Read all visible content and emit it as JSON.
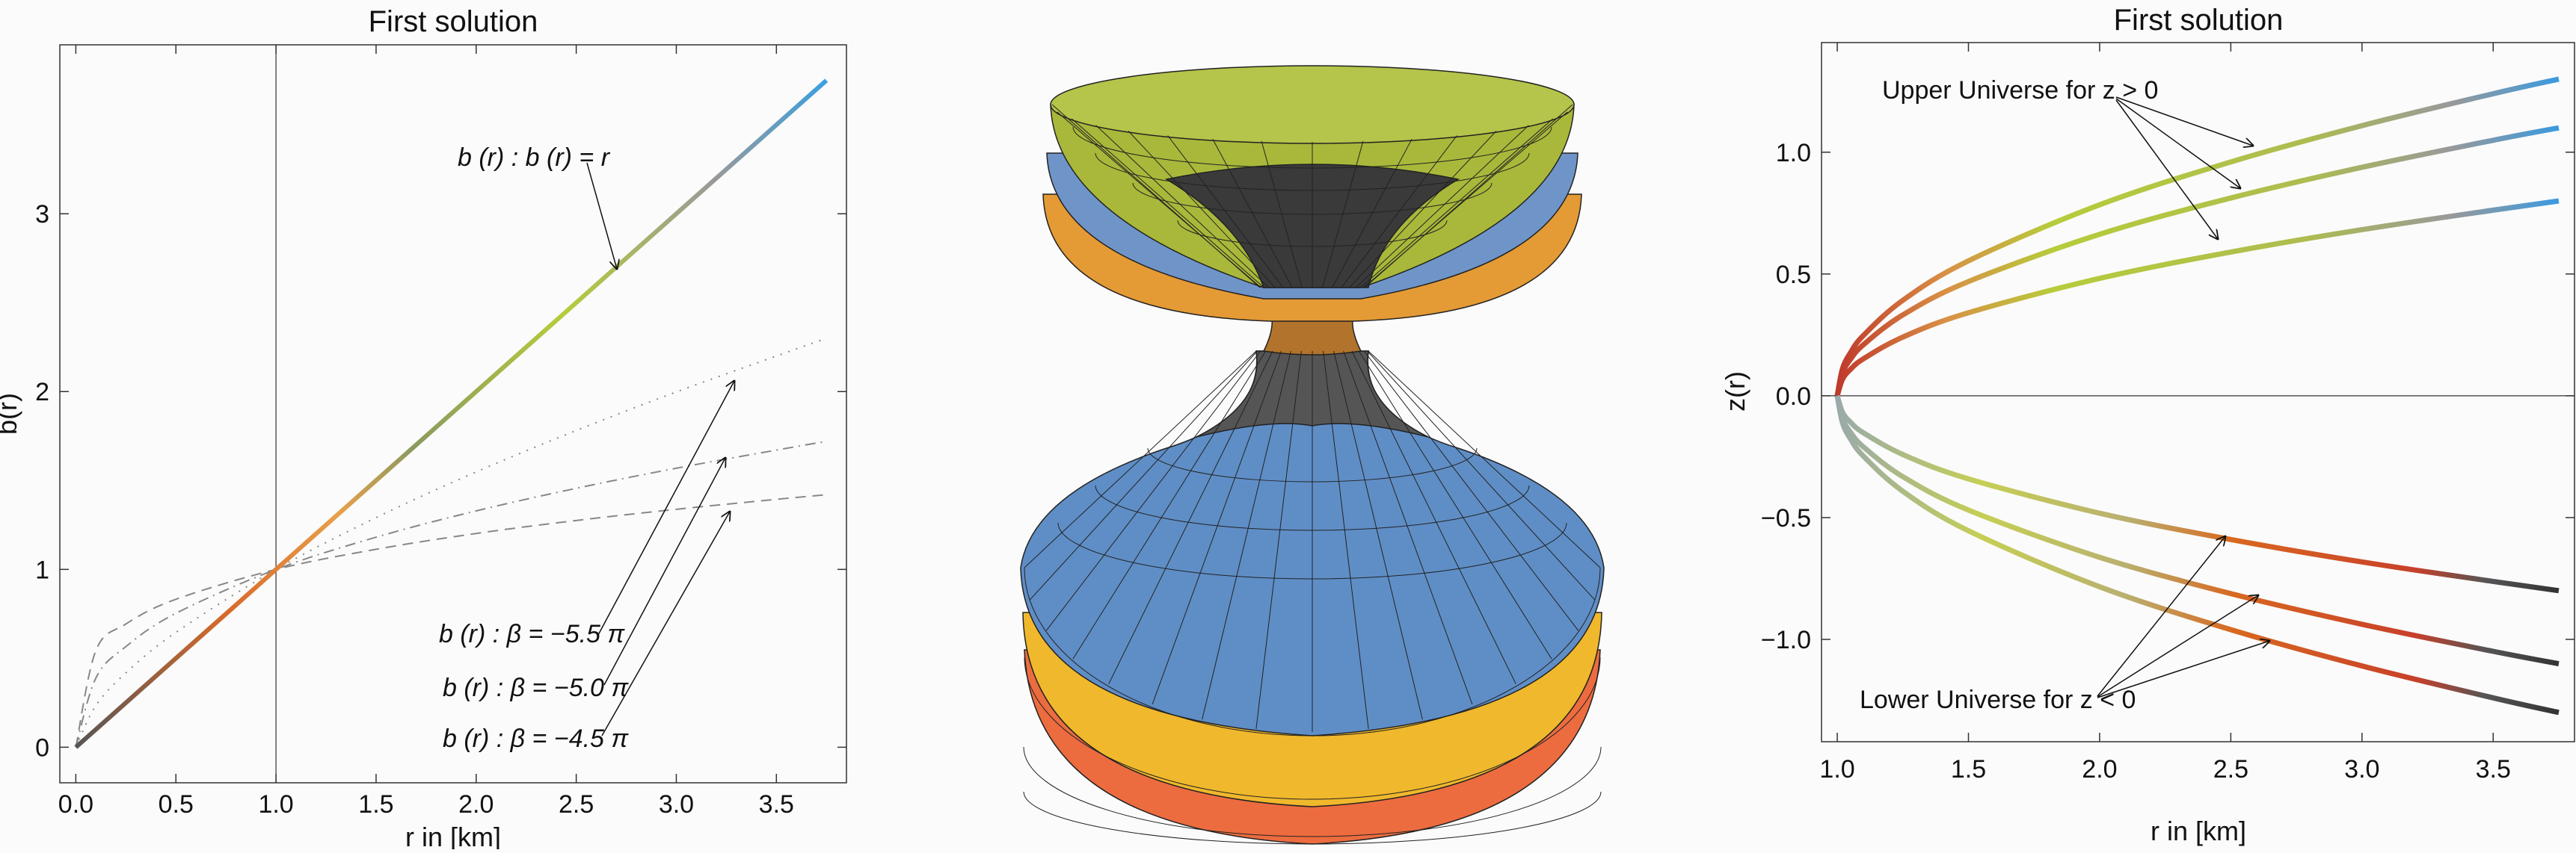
{
  "chart_data": [
    {
      "type": "line",
      "title": "First solution",
      "xlabel": "r in [km]",
      "ylabel": "b(r)",
      "xlim": [
        -0.08,
        3.85
      ],
      "ylim": [
        -0.2,
        3.95
      ],
      "xticks": [
        "0.0",
        "0.5",
        "1.0",
        "1.5",
        "2.0",
        "2.5",
        "3.0",
        "3.5"
      ],
      "yticks": [
        "0",
        "1",
        "2",
        "3"
      ],
      "grid": false,
      "vertical_reference_line_x": 1.0,
      "x": [
        0,
        0.1,
        0.25,
        0.5,
        1,
        1.5,
        2,
        2.5,
        3,
        3.5,
        3.75
      ],
      "series": [
        {
          "annotation": "b (r) : b (r) = r",
          "style": "solid-gradient",
          "values": [
            0,
            0.1,
            0.25,
            0.5,
            1,
            1.5,
            2,
            2.5,
            3,
            3.5,
            3.75
          ]
        },
        {
          "annotation": "b (r) : β = −5.5 π",
          "style": "dotted",
          "values": [
            0,
            0.234,
            0.418,
            0.646,
            1,
            1.291,
            1.548,
            1.781,
            1.998,
            2.2,
            2.3
          ]
        },
        {
          "annotation": "b (r) : β = −5.0 π",
          "style": "dash-dot",
          "values": [
            0,
            0.389,
            0.566,
            0.753,
            1,
            1.181,
            1.329,
            1.456,
            1.569,
            1.671,
            1.72
          ]
        },
        {
          "annotation": "b (r) : β = −4.5 π",
          "style": "dashed",
          "values": [
            0,
            0.543,
            0.693,
            0.832,
            1,
            1.113,
            1.202,
            1.275,
            1.338,
            1.394,
            1.42
          ]
        }
      ]
    },
    {
      "type": "line",
      "title": "First solution",
      "xlabel": "r in [km]",
      "ylabel": "z(r)",
      "xlim": [
        0.94,
        3.81
      ],
      "ylim": [
        -1.42,
        1.45
      ],
      "xticks": [
        "1.0",
        "1.5",
        "2.0",
        "2.5",
        "3.0",
        "3.5"
      ],
      "yticks": [
        "1.0",
        "0.5",
        "0.0",
        "-0.5",
        "-1.0"
      ],
      "grid": false,
      "horizontal_reference_line_y": 0.0,
      "annotations": [
        "Upper Universe for z > 0",
        "Lower Universe for z < 0"
      ],
      "x": [
        1,
        1.02,
        1.05,
        1.1,
        1.25,
        1.5,
        2,
        2.5,
        3,
        3.5,
        3.75
      ],
      "series": [
        {
          "group": "upper",
          "values": [
            0,
            0.111,
            0.176,
            0.248,
            0.392,
            0.554,
            0.784,
            0.96,
            1.109,
            1.24,
            1.3
          ]
        },
        {
          "group": "upper",
          "values": [
            0,
            0.094,
            0.149,
            0.21,
            0.332,
            0.469,
            0.663,
            0.812,
            0.938,
            1.049,
            1.1
          ]
        },
        {
          "group": "upper",
          "values": [
            0,
            0.068,
            0.108,
            0.152,
            0.241,
            0.341,
            0.482,
            0.59,
            0.682,
            0.762,
            0.8
          ]
        },
        {
          "group": "lower",
          "values": [
            0,
            -0.068,
            -0.108,
            -0.152,
            -0.241,
            -0.341,
            -0.482,
            -0.59,
            -0.682,
            -0.762,
            -0.8
          ]
        },
        {
          "group": "lower",
          "values": [
            0,
            -0.094,
            -0.149,
            -0.21,
            -0.332,
            -0.469,
            -0.663,
            -0.812,
            -0.938,
            -1.049,
            -1.1
          ]
        },
        {
          "group": "lower",
          "values": [
            0,
            -0.111,
            -0.176,
            -0.248,
            -0.392,
            -0.554,
            -0.784,
            -0.96,
            -1.109,
            -1.24,
            -1.3
          ]
        }
      ]
    }
  ],
  "embedding_diagram": {
    "colors": {
      "top": "#a9b83a",
      "upper_mid": "#6f95c8",
      "upper_under": "#e49a35",
      "lower_main": "#5f8ec6",
      "lower_band": "#f0b82c",
      "lower_base": "#ec6c3f",
      "throat": "#3a3a3a"
    }
  }
}
